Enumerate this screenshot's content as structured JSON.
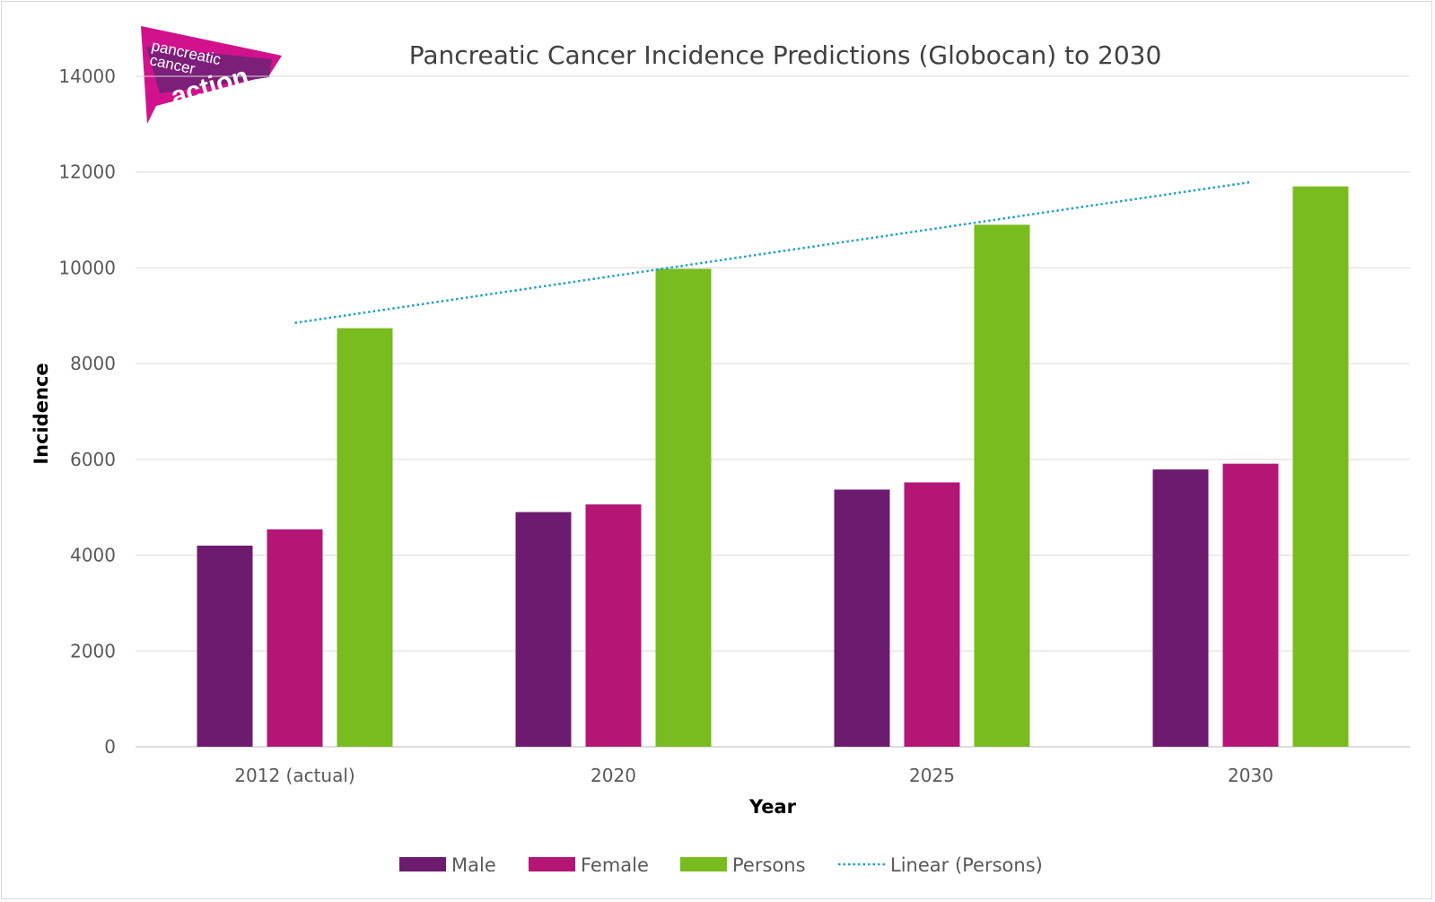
{
  "logo": {
    "line1": "pancreatic",
    "line2": "cancer",
    "line3": "action",
    "colors": {
      "magenta": "#d1128c",
      "purple": "#6f1d6e"
    }
  },
  "chart_data": {
    "type": "bar",
    "title": "Pancreatic Cancer Incidence Predictions (Globocan) to 2030",
    "xlabel": "Year",
    "ylabel": "Incidence",
    "categories": [
      "2012 (actual)",
      "2020",
      "2025",
      "2030"
    ],
    "ylim": [
      0,
      14000
    ],
    "yticks": [
      0,
      2000,
      4000,
      6000,
      8000,
      10000,
      12000,
      14000
    ],
    "grid": true,
    "legend_position": "bottom",
    "series": [
      {
        "name": "Male",
        "values": [
          4200,
          4900,
          5370,
          5790
        ],
        "color": "#6d1b6e"
      },
      {
        "name": "Female",
        "values": [
          4540,
          5060,
          5520,
          5910
        ],
        "color": "#b41676"
      },
      {
        "name": "Persons",
        "values": [
          8740,
          9980,
          10900,
          11700
        ],
        "color": "#78bc1f"
      }
    ],
    "trendline": {
      "name": "Linear (Persons)",
      "type": "linear",
      "series": "Persons",
      "values": [
        8850,
        9830,
        10810,
        11790
      ],
      "color": "#1fa2c8",
      "style": "dotted"
    }
  }
}
